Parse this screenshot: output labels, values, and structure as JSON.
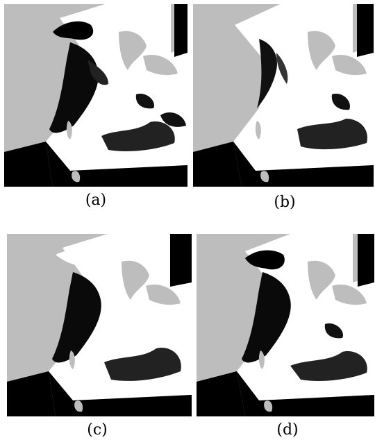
{
  "figure": {
    "panels": [
      {
        "id": "a",
        "label": "(a)"
      },
      {
        "id": "b",
        "label": "(b)"
      },
      {
        "id": "c",
        "label": "(c)"
      },
      {
        "id": "d",
        "label": "(d)"
      }
    ]
  },
  "colors": {
    "land": "#bdbdbd",
    "outside": "#000000",
    "clear_sea": "#ffffff",
    "turbid": "#111111"
  }
}
